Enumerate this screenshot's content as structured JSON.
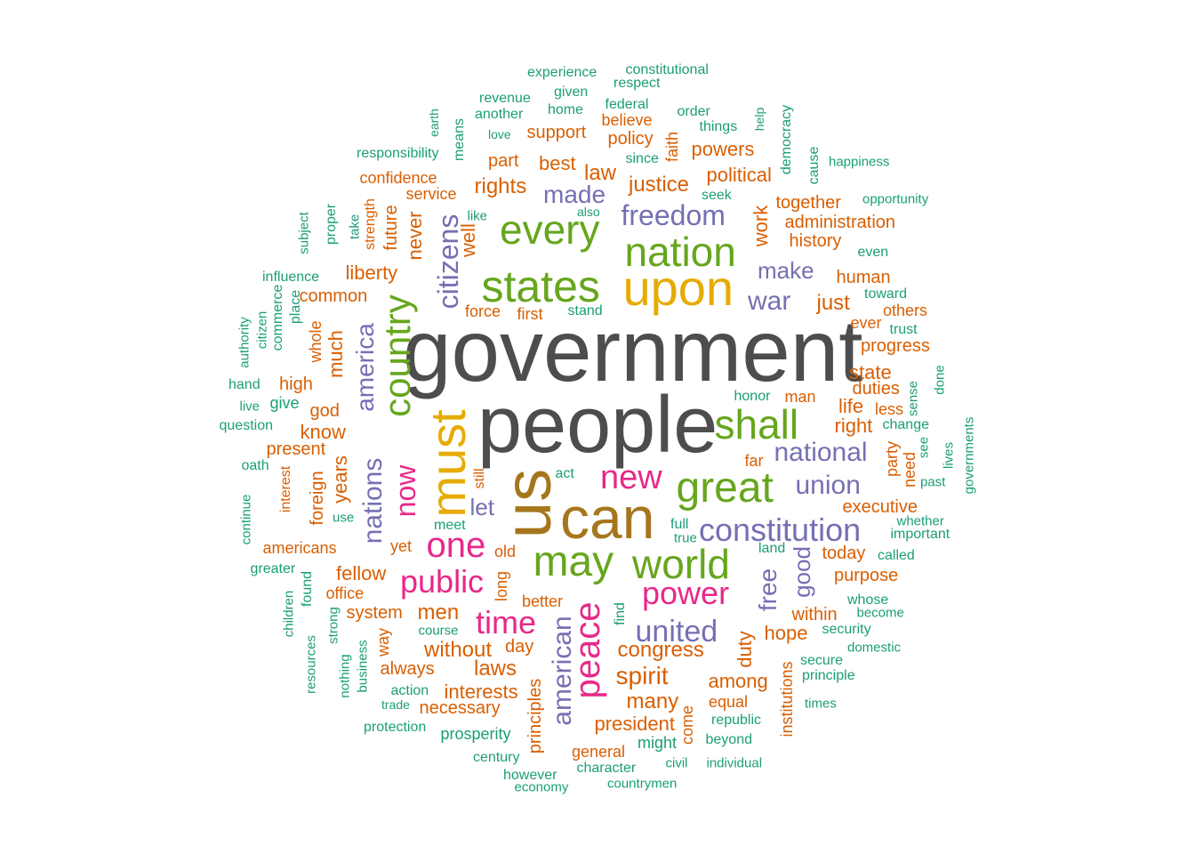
{
  "palette": {
    "dark_gray": "#4d4d4d",
    "brown": "#a6761d",
    "gold": "#e6ab02",
    "green": "#66a61e",
    "magenta": "#e7298a",
    "purple": "#7570b3",
    "orange": "#d95f02",
    "teal": "#1b9e77"
  },
  "words": [
    {
      "text": "government",
      "color": "dark_gray"
    },
    {
      "text": "people",
      "color": "dark_gray"
    },
    {
      "text": "us",
      "color": "brown"
    },
    {
      "text": "can",
      "color": "brown"
    },
    {
      "text": "upon",
      "color": "gold"
    },
    {
      "text": "must",
      "color": "gold"
    },
    {
      "text": "states",
      "color": "green"
    },
    {
      "text": "nation",
      "color": "green"
    },
    {
      "text": "every",
      "color": "green"
    },
    {
      "text": "great",
      "color": "green"
    },
    {
      "text": "may",
      "color": "green"
    },
    {
      "text": "world",
      "color": "green"
    },
    {
      "text": "shall",
      "color": "green"
    },
    {
      "text": "country",
      "color": "green"
    },
    {
      "text": "one",
      "color": "magenta"
    },
    {
      "text": "peace",
      "color": "magenta"
    },
    {
      "text": "new",
      "color": "magenta"
    },
    {
      "text": "public",
      "color": "magenta"
    },
    {
      "text": "time",
      "color": "magenta"
    },
    {
      "text": "power",
      "color": "magenta"
    },
    {
      "text": "now",
      "color": "magenta"
    },
    {
      "text": "freedom",
      "color": "purple"
    },
    {
      "text": "constitution",
      "color": "purple"
    },
    {
      "text": "united",
      "color": "purple"
    },
    {
      "text": "union",
      "color": "purple"
    },
    {
      "text": "national",
      "color": "purple"
    },
    {
      "text": "citizens",
      "color": "purple"
    },
    {
      "text": "america",
      "color": "purple"
    },
    {
      "text": "nations",
      "color": "purple"
    },
    {
      "text": "american",
      "color": "purple"
    },
    {
      "text": "war",
      "color": "purple"
    },
    {
      "text": "made",
      "color": "purple"
    },
    {
      "text": "make",
      "color": "purple"
    },
    {
      "text": "let",
      "color": "purple"
    },
    {
      "text": "free",
      "color": "purple"
    },
    {
      "text": "good",
      "color": "purple"
    },
    {
      "text": "law",
      "color": "orange"
    },
    {
      "text": "justice",
      "color": "orange"
    },
    {
      "text": "rights",
      "color": "orange"
    },
    {
      "text": "best",
      "color": "orange"
    },
    {
      "text": "political",
      "color": "orange"
    },
    {
      "text": "powers",
      "color": "orange"
    },
    {
      "text": "policy",
      "color": "orange"
    },
    {
      "text": "believe",
      "color": "orange"
    },
    {
      "text": "support",
      "color": "orange"
    },
    {
      "text": "part",
      "color": "orange"
    },
    {
      "text": "confidence",
      "color": "orange"
    },
    {
      "text": "service",
      "color": "orange"
    },
    {
      "text": "faith",
      "color": "orange"
    },
    {
      "text": "work",
      "color": "orange"
    },
    {
      "text": "together",
      "color": "orange"
    },
    {
      "text": "administration",
      "color": "orange"
    },
    {
      "text": "history",
      "color": "orange"
    },
    {
      "text": "liberty",
      "color": "orange"
    },
    {
      "text": "never",
      "color": "orange"
    },
    {
      "text": "well",
      "color": "orange"
    },
    {
      "text": "future",
      "color": "orange"
    },
    {
      "text": "strength",
      "color": "orange"
    },
    {
      "text": "common",
      "color": "orange"
    },
    {
      "text": "force",
      "color": "orange"
    },
    {
      "text": "first",
      "color": "orange"
    },
    {
      "text": "human",
      "color": "orange"
    },
    {
      "text": "just",
      "color": "orange"
    },
    {
      "text": "ever",
      "color": "orange"
    },
    {
      "text": "others",
      "color": "orange"
    },
    {
      "text": "progress",
      "color": "orange"
    },
    {
      "text": "state",
      "color": "orange"
    },
    {
      "text": "duties",
      "color": "orange"
    },
    {
      "text": "man",
      "color": "orange"
    },
    {
      "text": "life",
      "color": "orange"
    },
    {
      "text": "less",
      "color": "orange"
    },
    {
      "text": "right",
      "color": "orange"
    },
    {
      "text": "much",
      "color": "orange"
    },
    {
      "text": "whole",
      "color": "orange"
    },
    {
      "text": "high",
      "color": "orange"
    },
    {
      "text": "god",
      "color": "orange"
    },
    {
      "text": "know",
      "color": "orange"
    },
    {
      "text": "present",
      "color": "orange"
    },
    {
      "text": "years",
      "color": "orange"
    },
    {
      "text": "foreign",
      "color": "orange"
    },
    {
      "text": "interest",
      "color": "orange"
    },
    {
      "text": "far",
      "color": "orange"
    },
    {
      "text": "party",
      "color": "orange"
    },
    {
      "text": "need",
      "color": "orange"
    },
    {
      "text": "executive",
      "color": "orange"
    },
    {
      "text": "americans",
      "color": "orange"
    },
    {
      "text": "yet",
      "color": "orange"
    },
    {
      "text": "old",
      "color": "orange"
    },
    {
      "text": "still",
      "color": "orange"
    },
    {
      "text": "long",
      "color": "orange"
    },
    {
      "text": "fellow",
      "color": "orange"
    },
    {
      "text": "office",
      "color": "orange"
    },
    {
      "text": "system",
      "color": "orange"
    },
    {
      "text": "men",
      "color": "orange"
    },
    {
      "text": "better",
      "color": "orange"
    },
    {
      "text": "way",
      "color": "orange"
    },
    {
      "text": "without",
      "color": "orange"
    },
    {
      "text": "day",
      "color": "orange"
    },
    {
      "text": "laws",
      "color": "orange"
    },
    {
      "text": "always",
      "color": "orange"
    },
    {
      "text": "congress",
      "color": "orange"
    },
    {
      "text": "spirit",
      "color": "orange"
    },
    {
      "text": "interests",
      "color": "orange"
    },
    {
      "text": "necessary",
      "color": "orange"
    },
    {
      "text": "principles",
      "color": "orange"
    },
    {
      "text": "many",
      "color": "orange"
    },
    {
      "text": "president",
      "color": "orange"
    },
    {
      "text": "come",
      "color": "orange"
    },
    {
      "text": "general",
      "color": "orange"
    },
    {
      "text": "among",
      "color": "orange"
    },
    {
      "text": "equal",
      "color": "orange"
    },
    {
      "text": "duty",
      "color": "orange"
    },
    {
      "text": "hope",
      "color": "orange"
    },
    {
      "text": "within",
      "color": "orange"
    },
    {
      "text": "today",
      "color": "orange"
    },
    {
      "text": "purpose",
      "color": "orange"
    },
    {
      "text": "institutions",
      "color": "orange"
    },
    {
      "text": "experience",
      "color": "teal"
    },
    {
      "text": "constitutional",
      "color": "teal"
    },
    {
      "text": "respect",
      "color": "teal"
    },
    {
      "text": "given",
      "color": "teal"
    },
    {
      "text": "revenue",
      "color": "teal"
    },
    {
      "text": "another",
      "color": "teal"
    },
    {
      "text": "home",
      "color": "teal"
    },
    {
      "text": "federal",
      "color": "teal"
    },
    {
      "text": "order",
      "color": "teal"
    },
    {
      "text": "things",
      "color": "teal"
    },
    {
      "text": "help",
      "color": "teal"
    },
    {
      "text": "democracy",
      "color": "teal"
    },
    {
      "text": "earth",
      "color": "teal"
    },
    {
      "text": "means",
      "color": "teal"
    },
    {
      "text": "love",
      "color": "teal"
    },
    {
      "text": "responsibility",
      "color": "teal"
    },
    {
      "text": "since",
      "color": "teal"
    },
    {
      "text": "cause",
      "color": "teal"
    },
    {
      "text": "happiness",
      "color": "teal"
    },
    {
      "text": "seek",
      "color": "teal"
    },
    {
      "text": "also",
      "color": "teal"
    },
    {
      "text": "like",
      "color": "teal"
    },
    {
      "text": "opportunity",
      "color": "teal"
    },
    {
      "text": "subject",
      "color": "teal"
    },
    {
      "text": "proper",
      "color": "teal"
    },
    {
      "text": "take",
      "color": "teal"
    },
    {
      "text": "even",
      "color": "teal"
    },
    {
      "text": "influence",
      "color": "teal"
    },
    {
      "text": "toward",
      "color": "teal"
    },
    {
      "text": "trust",
      "color": "teal"
    },
    {
      "text": "stand",
      "color": "teal"
    },
    {
      "text": "authority",
      "color": "teal"
    },
    {
      "text": "citizen",
      "color": "teal"
    },
    {
      "text": "commerce",
      "color": "teal"
    },
    {
      "text": "place",
      "color": "teal"
    },
    {
      "text": "hand",
      "color": "teal"
    },
    {
      "text": "honor",
      "color": "teal"
    },
    {
      "text": "sense",
      "color": "teal"
    },
    {
      "text": "done",
      "color": "teal"
    },
    {
      "text": "live",
      "color": "teal"
    },
    {
      "text": "give",
      "color": "teal"
    },
    {
      "text": "question",
      "color": "teal"
    },
    {
      "text": "change",
      "color": "teal"
    },
    {
      "text": "governments",
      "color": "teal"
    },
    {
      "text": "oath",
      "color": "teal"
    },
    {
      "text": "see",
      "color": "teal"
    },
    {
      "text": "lives",
      "color": "teal"
    },
    {
      "text": "act",
      "color": "teal"
    },
    {
      "text": "past",
      "color": "teal"
    },
    {
      "text": "continue",
      "color": "teal"
    },
    {
      "text": "use",
      "color": "teal"
    },
    {
      "text": "meet",
      "color": "teal"
    },
    {
      "text": "full",
      "color": "teal"
    },
    {
      "text": "whether",
      "color": "teal"
    },
    {
      "text": "true",
      "color": "teal"
    },
    {
      "text": "important",
      "color": "teal"
    },
    {
      "text": "land",
      "color": "teal"
    },
    {
      "text": "called",
      "color": "teal"
    },
    {
      "text": "greater",
      "color": "teal"
    },
    {
      "text": "children",
      "color": "teal"
    },
    {
      "text": "found",
      "color": "teal"
    },
    {
      "text": "whose",
      "color": "teal"
    },
    {
      "text": "become",
      "color": "teal"
    },
    {
      "text": "strong",
      "color": "teal"
    },
    {
      "text": "security",
      "color": "teal"
    },
    {
      "text": "resources",
      "color": "teal"
    },
    {
      "text": "business",
      "color": "teal"
    },
    {
      "text": "nothing",
      "color": "teal"
    },
    {
      "text": "course",
      "color": "teal"
    },
    {
      "text": "find",
      "color": "teal"
    },
    {
      "text": "domestic",
      "color": "teal"
    },
    {
      "text": "secure",
      "color": "teal"
    },
    {
      "text": "principle",
      "color": "teal"
    },
    {
      "text": "action",
      "color": "teal"
    },
    {
      "text": "trade",
      "color": "teal"
    },
    {
      "text": "times",
      "color": "teal"
    },
    {
      "text": "republic",
      "color": "teal"
    },
    {
      "text": "protection",
      "color": "teal"
    },
    {
      "text": "prosperity",
      "color": "teal"
    },
    {
      "text": "might",
      "color": "teal"
    },
    {
      "text": "beyond",
      "color": "teal"
    },
    {
      "text": "century",
      "color": "teal"
    },
    {
      "text": "character",
      "color": "teal"
    },
    {
      "text": "civil",
      "color": "teal"
    },
    {
      "text": "individual",
      "color": "teal"
    },
    {
      "text": "however",
      "color": "teal"
    },
    {
      "text": "economy",
      "color": "teal"
    },
    {
      "text": "countrymen",
      "color": "teal"
    }
  ]
}
